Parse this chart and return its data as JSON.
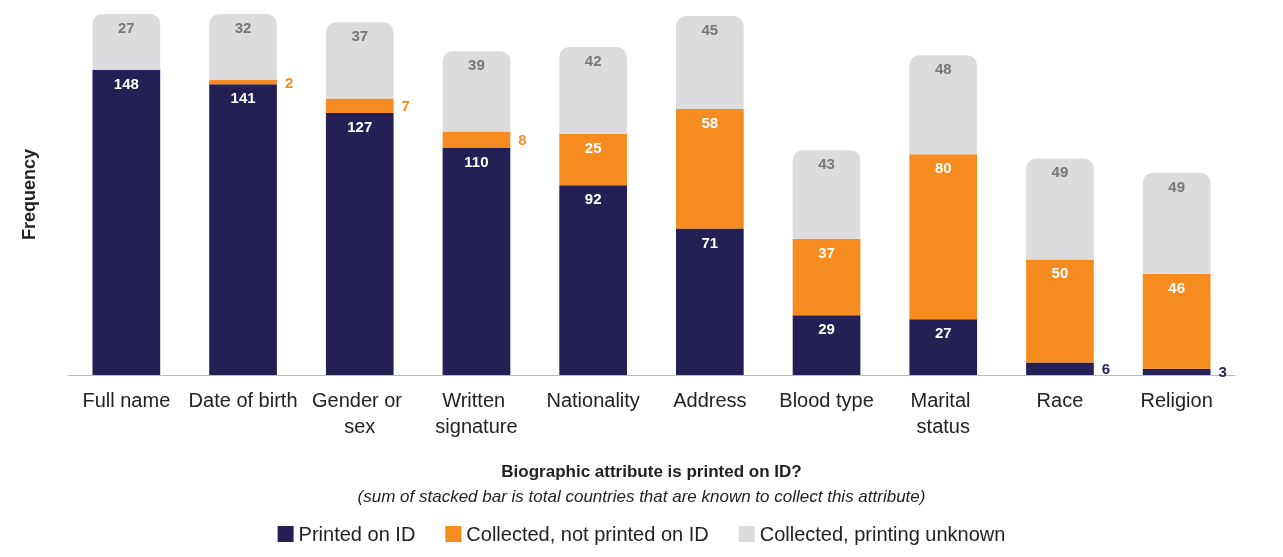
{
  "chart_data": {
    "type": "bar",
    "stacked": true,
    "ylabel": "Frequency",
    "xlabel": "Biographic attribute is printed on ID?",
    "annotations": [
      "(sum of stacked bar is total countries that are known to collect this attribute)"
    ],
    "categories": [
      "Full name",
      "Date of birth",
      "Gender or sex",
      "Written signature",
      "Nationality",
      "Address",
      "Blood type",
      "Marital status",
      "Race",
      "Religion"
    ],
    "series": [
      {
        "name": "Printed on ID",
        "color": "#241f54",
        "values": [
          148,
          141,
          127,
          110,
          92,
          71,
          29,
          27,
          6,
          3
        ],
        "value_labels": [
          "148",
          "141",
          "127",
          "110",
          "92",
          "71",
          "29",
          "27",
          "6",
          "3"
        ]
      },
      {
        "name": "Collected, not printed on ID",
        "color": "#f68b1f",
        "values": [
          0,
          2,
          7,
          8,
          25,
          58,
          37,
          80,
          50,
          46
        ],
        "value_labels": [
          null,
          "2",
          "7",
          "8",
          "25",
          "58",
          "37",
          "80",
          "50",
          "46"
        ]
      },
      {
        "name": "Collected, printing unknown",
        "color": "#dcdcde",
        "values": [
          27,
          32,
          37,
          39,
          42,
          45,
          43,
          48,
          49,
          49
        ],
        "value_labels": [
          "27",
          "32",
          "37",
          "39",
          "42",
          "45",
          "43",
          "48",
          "49",
          "49"
        ]
      }
    ],
    "legend": "bottom",
    "grid": false
  }
}
